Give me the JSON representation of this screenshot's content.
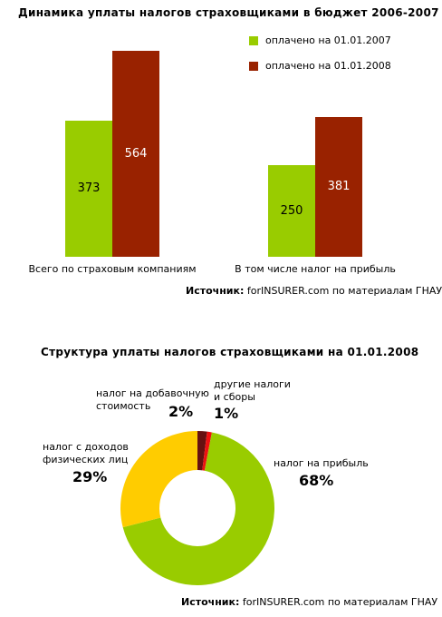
{
  "chart_data": [
    {
      "type": "bar",
      "title": "Динамика уплаты налогов страховщиками в бюджет 2006-2007",
      "categories": [
        "Всего по страховым компаниям",
        "В том числе налог на прибыль"
      ],
      "series": [
        {
          "name": "оплачено на 01.01.2007",
          "values": [
            373,
            250
          ],
          "color": "#99cc00"
        },
        {
          "name": "оплачено на 01.01.2008",
          "values": [
            564,
            381
          ],
          "color": "#992200"
        }
      ],
      "ylim": [
        0,
        650
      ],
      "legend": "top-right",
      "grid": false
    },
    {
      "type": "pie",
      "title": "Структура уплаты налогов страховщиками на 01.01.2008",
      "slices": [
        {
          "label": "налог на прибыль",
          "value": 68,
          "pct": "68%",
          "color": "#99cc00"
        },
        {
          "label": "налог с доходов\nфизических лиц",
          "value": 29,
          "pct": "29%",
          "color": "#ffcc00"
        },
        {
          "label": "налог на добавочную\nстоимость",
          "value": 2,
          "pct": "2%",
          "color": "#661111"
        },
        {
          "label": "другие налоги\nи сборы",
          "value": 1,
          "pct": "1%",
          "color": "#ee1111"
        }
      ]
    }
  ],
  "source1": {
    "label": "Источник:",
    "text": " forINSURER.com по материалам ГНАУ"
  },
  "source2": {
    "label": "Источник:",
    "text": " forINSURER.com по материалам ГНАУ"
  }
}
